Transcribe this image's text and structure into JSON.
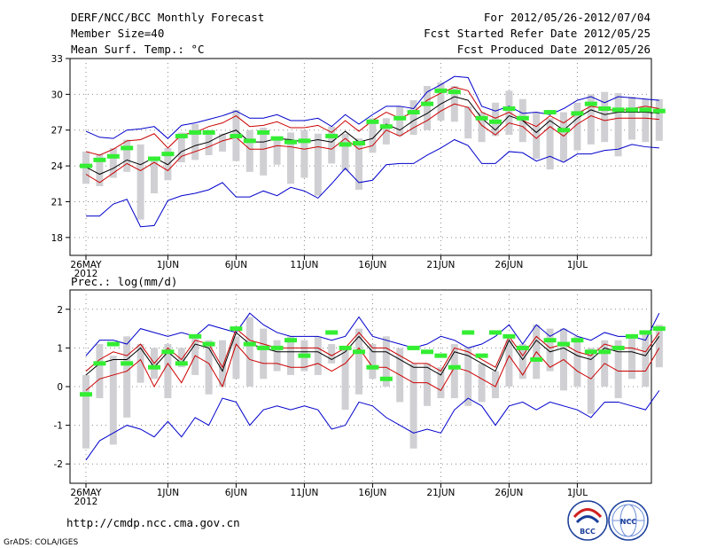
{
  "header": {
    "title": "DERF/NCC/BCC Monthly Forecast",
    "member_size": "Member Size=40",
    "variable": "Mean Surf. Temp.: °C",
    "period": "For 2012/05/26-2012/07/04",
    "started": "Fcst Started Refer Date 2012/05/25",
    "produced": "Fcst Produced Date 2012/05/26"
  },
  "footer": {
    "url": "http://cmdp.ncc.cma.gov.cn",
    "credit": "GrADS: COLA/IGES",
    "logo_bcc": "BCC",
    "logo_ncc": "NCC"
  },
  "chart_data": [
    {
      "type": "line",
      "title": "Mean Surf. Temp.: °C",
      "ylim": [
        16.5,
        33
      ],
      "yticks": [
        "18",
        "21",
        "24",
        "27",
        "30",
        "33"
      ],
      "ytick_values": [
        18,
        21,
        24,
        27,
        30,
        33
      ],
      "x_tick_days": [
        0,
        6,
        11,
        16,
        21,
        26,
        31,
        36
      ],
      "x_tick_labels": [
        "26MAY",
        "1JUN",
        "6JUN",
        "11JUN",
        "16JUN",
        "21JUN",
        "26JUN",
        "1JUL"
      ],
      "x_year": "2012",
      "bars": [
        [
          22.5,
          25.2
        ],
        [
          22.3,
          25.0
        ],
        [
          23.0,
          25.5
        ],
        [
          23.5,
          26.2
        ],
        [
          19.5,
          25.8
        ],
        [
          21.7,
          24.5
        ],
        [
          22.8,
          25.5
        ],
        [
          24.3,
          26.8
        ],
        [
          24.5,
          27.5
        ],
        [
          24.9,
          27.0
        ],
        [
          25.2,
          26.7
        ],
        [
          24.4,
          28.7
        ],
        [
          23.5,
          27.0
        ],
        [
          23.2,
          27.2
        ],
        [
          24.1,
          26.3
        ],
        [
          22.5,
          26.8
        ],
        [
          23.0,
          27.0
        ],
        [
          21.5,
          26.7
        ],
        [
          24.2,
          27.3
        ],
        [
          23.6,
          26.7
        ],
        [
          22.0,
          26.3
        ],
        [
          25.1,
          28.0
        ],
        [
          25.8,
          28.0
        ],
        [
          26.5,
          29.0
        ],
        [
          26.6,
          29.5
        ],
        [
          27.0,
          30.7
        ],
        [
          27.8,
          31.0
        ],
        [
          27.7,
          30.7
        ],
        [
          26.3,
          29.0
        ],
        [
          26.0,
          28.5
        ],
        [
          26.5,
          29.3
        ],
        [
          26.6,
          30.3
        ],
        [
          26.0,
          29.6
        ],
        [
          24.6,
          28.5
        ],
        [
          23.7,
          28.0
        ],
        [
          24.4,
          28.5
        ],
        [
          25.3,
          29.3
        ],
        [
          25.8,
          30.0
        ],
        [
          26.0,
          30.2
        ],
        [
          24.8,
          30.1
        ],
        [
          26.2,
          29.8
        ],
        [
          26.0,
          29.6
        ],
        [
          26.1,
          29.6
        ]
      ],
      "series": [
        {
          "name": "max",
          "color": "#0000cc",
          "values": [
            26.9,
            26.4,
            26.3,
            27.0,
            27.1,
            27.3,
            26.3,
            27.4,
            27.6,
            27.9,
            28.2,
            28.6,
            28.0,
            28.0,
            28.3,
            27.8,
            27.8,
            28.0,
            27.3,
            28.3,
            27.5,
            28.3,
            29.0,
            29.0,
            28.8,
            30.2,
            30.8,
            31.5,
            31.4,
            29.0,
            28.6,
            29.0,
            28.4,
            28.5,
            28.3,
            28.8,
            29.5,
            29.8,
            29.3,
            29.8,
            29.7,
            29.6,
            29.5
          ]
        },
        {
          "name": "upper",
          "color": "#cc0000",
          "values": [
            25.2,
            24.9,
            25.4,
            26.1,
            26.2,
            26.7,
            25.5,
            26.6,
            26.8,
            27.3,
            27.6,
            28.2,
            27.3,
            27.4,
            27.7,
            27.2,
            27.2,
            27.4,
            26.8,
            27.8,
            26.9,
            27.8,
            28.5,
            28.0,
            28.5,
            29.5,
            30.1,
            30.6,
            30.3,
            28.5,
            28.0,
            28.5,
            27.8,
            27.3,
            28.2,
            27.6,
            28.4,
            29.0,
            28.8,
            28.6,
            28.8,
            29.0,
            28.8
          ]
        },
        {
          "name": "mean",
          "color": "#000000",
          "values": [
            23.9,
            23.3,
            23.8,
            24.5,
            24.1,
            24.7,
            24.1,
            25.2,
            25.7,
            26.0,
            26.6,
            27.0,
            26.0,
            26.0,
            26.3,
            26.2,
            26.0,
            26.2,
            26.0,
            26.9,
            26.0,
            26.3,
            27.5,
            27.0,
            27.8,
            28.4,
            29.2,
            29.8,
            29.5,
            28.0,
            27.0,
            28.2,
            27.8,
            26.8,
            27.8,
            27.0,
            28.0,
            28.7,
            28.3,
            28.5,
            28.5,
            28.5,
            28.4
          ]
        },
        {
          "name": "lower",
          "color": "#cc0000",
          "values": [
            23.3,
            22.6,
            23.4,
            24.2,
            23.6,
            24.3,
            23.6,
            24.8,
            25.2,
            25.6,
            26.1,
            26.4,
            25.4,
            25.4,
            25.7,
            25.6,
            25.4,
            25.6,
            25.4,
            26.3,
            25.4,
            25.7,
            27.0,
            26.5,
            27.2,
            27.8,
            28.6,
            29.2,
            28.9,
            27.4,
            26.6,
            27.6,
            27.3,
            26.3,
            27.3,
            26.5,
            27.5,
            28.2,
            27.8,
            28.0,
            28.0,
            28.0,
            27.9
          ]
        },
        {
          "name": "min",
          "color": "#0000cc",
          "values": [
            19.8,
            19.8,
            20.8,
            21.2,
            18.9,
            19.0,
            21.1,
            21.5,
            21.7,
            22.0,
            22.6,
            21.4,
            21.4,
            21.9,
            21.5,
            22.2,
            21.9,
            21.3,
            22.5,
            23.8,
            22.6,
            22.8,
            24.1,
            24.2,
            24.2,
            24.9,
            25.5,
            26.2,
            25.7,
            24.2,
            24.2,
            25.2,
            25.1,
            24.4,
            24.8,
            24.3,
            25.0,
            25.0,
            25.3,
            25.4,
            25.8,
            25.6,
            25.5
          ]
        },
        {
          "name": "obs",
          "color": "#33ee33",
          "values": [
            24.0,
            24.5,
            24.8,
            25.5,
            null,
            24.6,
            25.0,
            26.5,
            26.8,
            26.8,
            null,
            26.5,
            26.1,
            26.8,
            26.3,
            26.0,
            26.1,
            null,
            26.5,
            25.8,
            25.9,
            27.7,
            27.3,
            28.0,
            28.5,
            29.2,
            30.3,
            30.2,
            null,
            28.0,
            27.7,
            28.8,
            28.0,
            null,
            28.5,
            27.0,
            28.4,
            29.2,
            28.8,
            28.7,
            28.7,
            28.7,
            28.6
          ]
        }
      ]
    },
    {
      "type": "line",
      "title": "Prec.: log(mm/d)",
      "ylim": [
        -2.5,
        2.5
      ],
      "yticks": [
        "-2",
        "-1",
        "0",
        "1",
        "2"
      ],
      "ytick_values": [
        -2,
        -1,
        0,
        1,
        2
      ],
      "x_tick_days": [
        0,
        6,
        11,
        16,
        21,
        26,
        31,
        36
      ],
      "x_tick_labels": [
        "26MAY",
        "1JUN",
        "6JUN",
        "11JUN",
        "16JUN",
        "21JUN",
        "26JUN",
        "1JUL"
      ],
      "x_year": "2012",
      "bars": [
        [
          -1.6,
          0.3
        ],
        [
          -0.3,
          1.1
        ],
        [
          -1.5,
          0.8
        ],
        [
          -0.8,
          1.3
        ],
        [
          0.1,
          1.1
        ],
        [
          0.2,
          1.0
        ],
        [
          -0.3,
          1.1
        ],
        [
          0.5,
          1.0
        ],
        [
          0.3,
          1.3
        ],
        [
          -0.2,
          1.2
        ],
        [
          0.0,
          1.2
        ],
        [
          0.2,
          1.3
        ],
        [
          0.0,
          1.8
        ],
        [
          0.2,
          1.5
        ],
        [
          0.4,
          1.2
        ],
        [
          0.3,
          1.3
        ],
        [
          0.4,
          1.2
        ],
        [
          0.3,
          1.3
        ],
        [
          0.6,
          1.1
        ],
        [
          -0.6,
          1.0
        ],
        [
          -0.2,
          1.5
        ],
        [
          0.2,
          1.1
        ],
        [
          0.0,
          1.3
        ],
        [
          -0.4,
          1.0
        ],
        [
          -1.6,
          0.6
        ],
        [
          -0.5,
          0.6
        ],
        [
          -0.3,
          0.5
        ],
        [
          -0.3,
          1.1
        ],
        [
          -0.5,
          1.0
        ],
        [
          -0.4,
          0.6
        ],
        [
          -0.3,
          0.4
        ],
        [
          0.0,
          1.2
        ],
        [
          0.2,
          1.1
        ],
        [
          0.2,
          1.6
        ],
        [
          0.4,
          1.5
        ],
        [
          -0.1,
          1.5
        ],
        [
          0.0,
          1.3
        ],
        [
          -0.7,
          1.0
        ],
        [
          0.0,
          1.2
        ],
        [
          -0.3,
          1.2
        ],
        [
          0.2,
          1.3
        ],
        [
          0.0,
          1.4
        ],
        [
          0.5,
          1.6
        ]
      ],
      "series": [
        {
          "name": "max",
          "color": "#0000cc",
          "values": [
            0.8,
            1.2,
            1.2,
            1.1,
            1.5,
            1.4,
            1.3,
            1.4,
            1.3,
            1.6,
            1.5,
            1.4,
            1.9,
            1.6,
            1.4,
            1.3,
            1.3,
            1.3,
            1.2,
            1.3,
            1.8,
            1.3,
            1.2,
            1.1,
            1.0,
            1.1,
            1.3,
            1.2,
            1.0,
            1.1,
            1.3,
            1.6,
            1.1,
            1.6,
            1.3,
            1.5,
            1.3,
            1.2,
            1.4,
            1.3,
            1.3,
            1.2,
            1.9
          ]
        },
        {
          "name": "upper",
          "color": "#cc0000",
          "values": [
            0.4,
            0.7,
            0.9,
            0.8,
            1.1,
            0.6,
            1.0,
            0.7,
            1.2,
            1.1,
            0.5,
            1.5,
            1.2,
            1.1,
            1.0,
            1.0,
            1.0,
            1.0,
            0.8,
            1.0,
            1.4,
            1.0,
            1.0,
            0.8,
            0.6,
            0.6,
            0.4,
            1.0,
            0.9,
            0.7,
            0.5,
            1.3,
            0.8,
            1.3,
            1.0,
            1.1,
            0.9,
            0.8,
            1.1,
            1.0,
            1.0,
            0.9,
            1.4
          ]
        },
        {
          "name": "mean",
          "color": "#000000",
          "values": [
            0.3,
            0.6,
            0.7,
            0.7,
            1.0,
            0.5,
            0.9,
            0.6,
            1.1,
            1.0,
            0.4,
            1.4,
            1.1,
            1.0,
            0.9,
            0.9,
            0.9,
            0.9,
            0.7,
            0.9,
            1.3,
            0.9,
            0.9,
            0.7,
            0.5,
            0.5,
            0.3,
            0.9,
            0.8,
            0.6,
            0.4,
            1.2,
            0.7,
            1.2,
            0.9,
            1.0,
            0.8,
            0.7,
            1.0,
            0.9,
            0.9,
            0.8,
            1.3
          ]
        },
        {
          "name": "lower",
          "color": "#cc0000",
          "values": [
            -0.1,
            0.2,
            0.3,
            0.4,
            0.7,
            0.0,
            0.6,
            0.1,
            0.8,
            0.6,
            0.0,
            1.1,
            0.7,
            0.6,
            0.6,
            0.5,
            0.5,
            0.6,
            0.4,
            0.6,
            1.0,
            0.5,
            0.5,
            0.3,
            0.1,
            0.1,
            -0.1,
            0.5,
            0.4,
            0.2,
            0.0,
            0.8,
            0.3,
            0.9,
            0.5,
            0.7,
            0.4,
            0.2,
            0.6,
            0.4,
            0.4,
            0.4,
            1.0
          ]
        },
        {
          "name": "min",
          "color": "#0000cc",
          "values": [
            -1.9,
            -1.4,
            -1.2,
            -1.0,
            -1.1,
            -1.3,
            -0.9,
            -1.3,
            -0.8,
            -1.0,
            -0.3,
            -0.4,
            -1.0,
            -0.6,
            -0.5,
            -0.6,
            -0.5,
            -0.6,
            -1.1,
            -1.0,
            -0.4,
            -0.5,
            -0.8,
            -1.0,
            -1.2,
            -1.1,
            -1.2,
            -0.6,
            -0.3,
            -0.5,
            -1.0,
            -0.5,
            -0.4,
            -0.6,
            -0.4,
            -0.5,
            -0.6,
            -0.8,
            -0.4,
            -0.4,
            -0.5,
            -0.6,
            -0.1
          ]
        },
        {
          "name": "obs",
          "color": "#33ee33",
          "values": [
            -0.2,
            0.6,
            1.1,
            0.6,
            null,
            0.5,
            0.9,
            0.6,
            1.3,
            1.1,
            null,
            1.5,
            1.1,
            1.0,
            1.0,
            1.2,
            0.8,
            null,
            1.4,
            1.0,
            0.9,
            0.5,
            0.2,
            null,
            1.0,
            0.9,
            0.8,
            0.5,
            1.4,
            0.8,
            1.4,
            1.3,
            1.0,
            0.7,
            1.2,
            1.1,
            1.2,
            0.9,
            0.9,
            1.0,
            1.3,
            1.4,
            1.5
          ]
        }
      ]
    }
  ]
}
